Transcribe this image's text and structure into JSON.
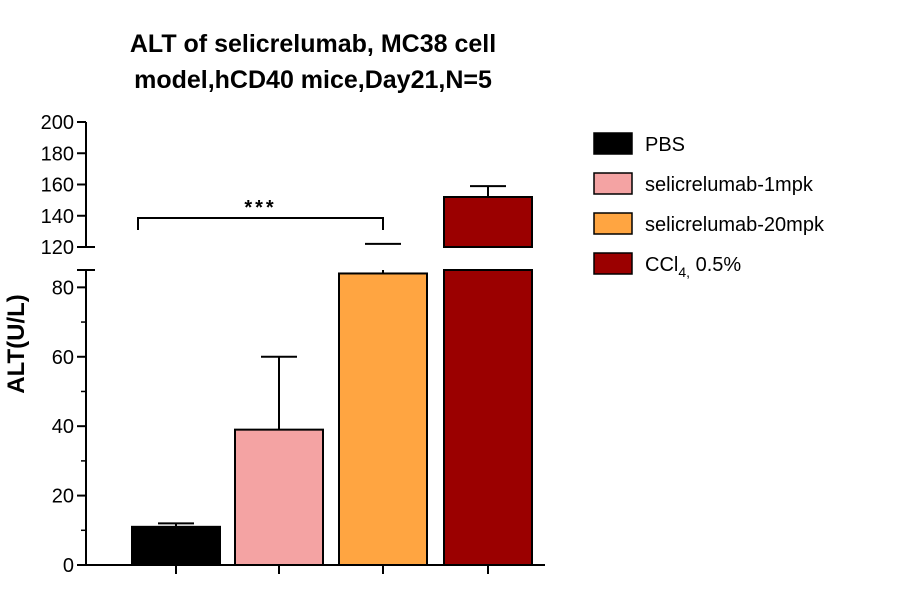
{
  "chart_data": {
    "type": "bar",
    "title_lines": [
      "ALT of selicrelumab, MC38 cell",
      "model,hCD40 mice,Day21,N=5"
    ],
    "ylabel": "ALT(U/L)",
    "xlabel": "",
    "categories": [
      "PBS",
      "selicrelumab-1mpk",
      "selicrelumab-20mpk",
      "CCl4, 0.5%"
    ],
    "legend": [
      {
        "base": "PBS",
        "sub": "",
        "suffix": ""
      },
      {
        "base": "selicrelumab-1mpk",
        "sub": "",
        "suffix": ""
      },
      {
        "base": "selicrelumab-20mpk",
        "sub": "",
        "suffix": ""
      },
      {
        "base": "CCl",
        "sub": "4,",
        "suffix": " 0.5%"
      }
    ],
    "values": [
      11,
      39,
      84,
      152
    ],
    "error_upper": [
      1,
      21,
      38,
      7
    ],
    "colors": [
      "#000000",
      "#f4a3a3",
      "#ffa541",
      "#9b0000"
    ],
    "y_axis": {
      "broken": true,
      "lower_segment": {
        "range": [
          0,
          85
        ],
        "ticks": [
          0,
          20,
          40,
          60,
          80
        ]
      },
      "upper_segment": {
        "range": [
          120,
          200
        ],
        "ticks": [
          120,
          140,
          160,
          180,
          200
        ]
      }
    },
    "significance": {
      "from_category": 0,
      "to_category": 2,
      "label": "***"
    },
    "legend_position": "right",
    "grid": false
  }
}
